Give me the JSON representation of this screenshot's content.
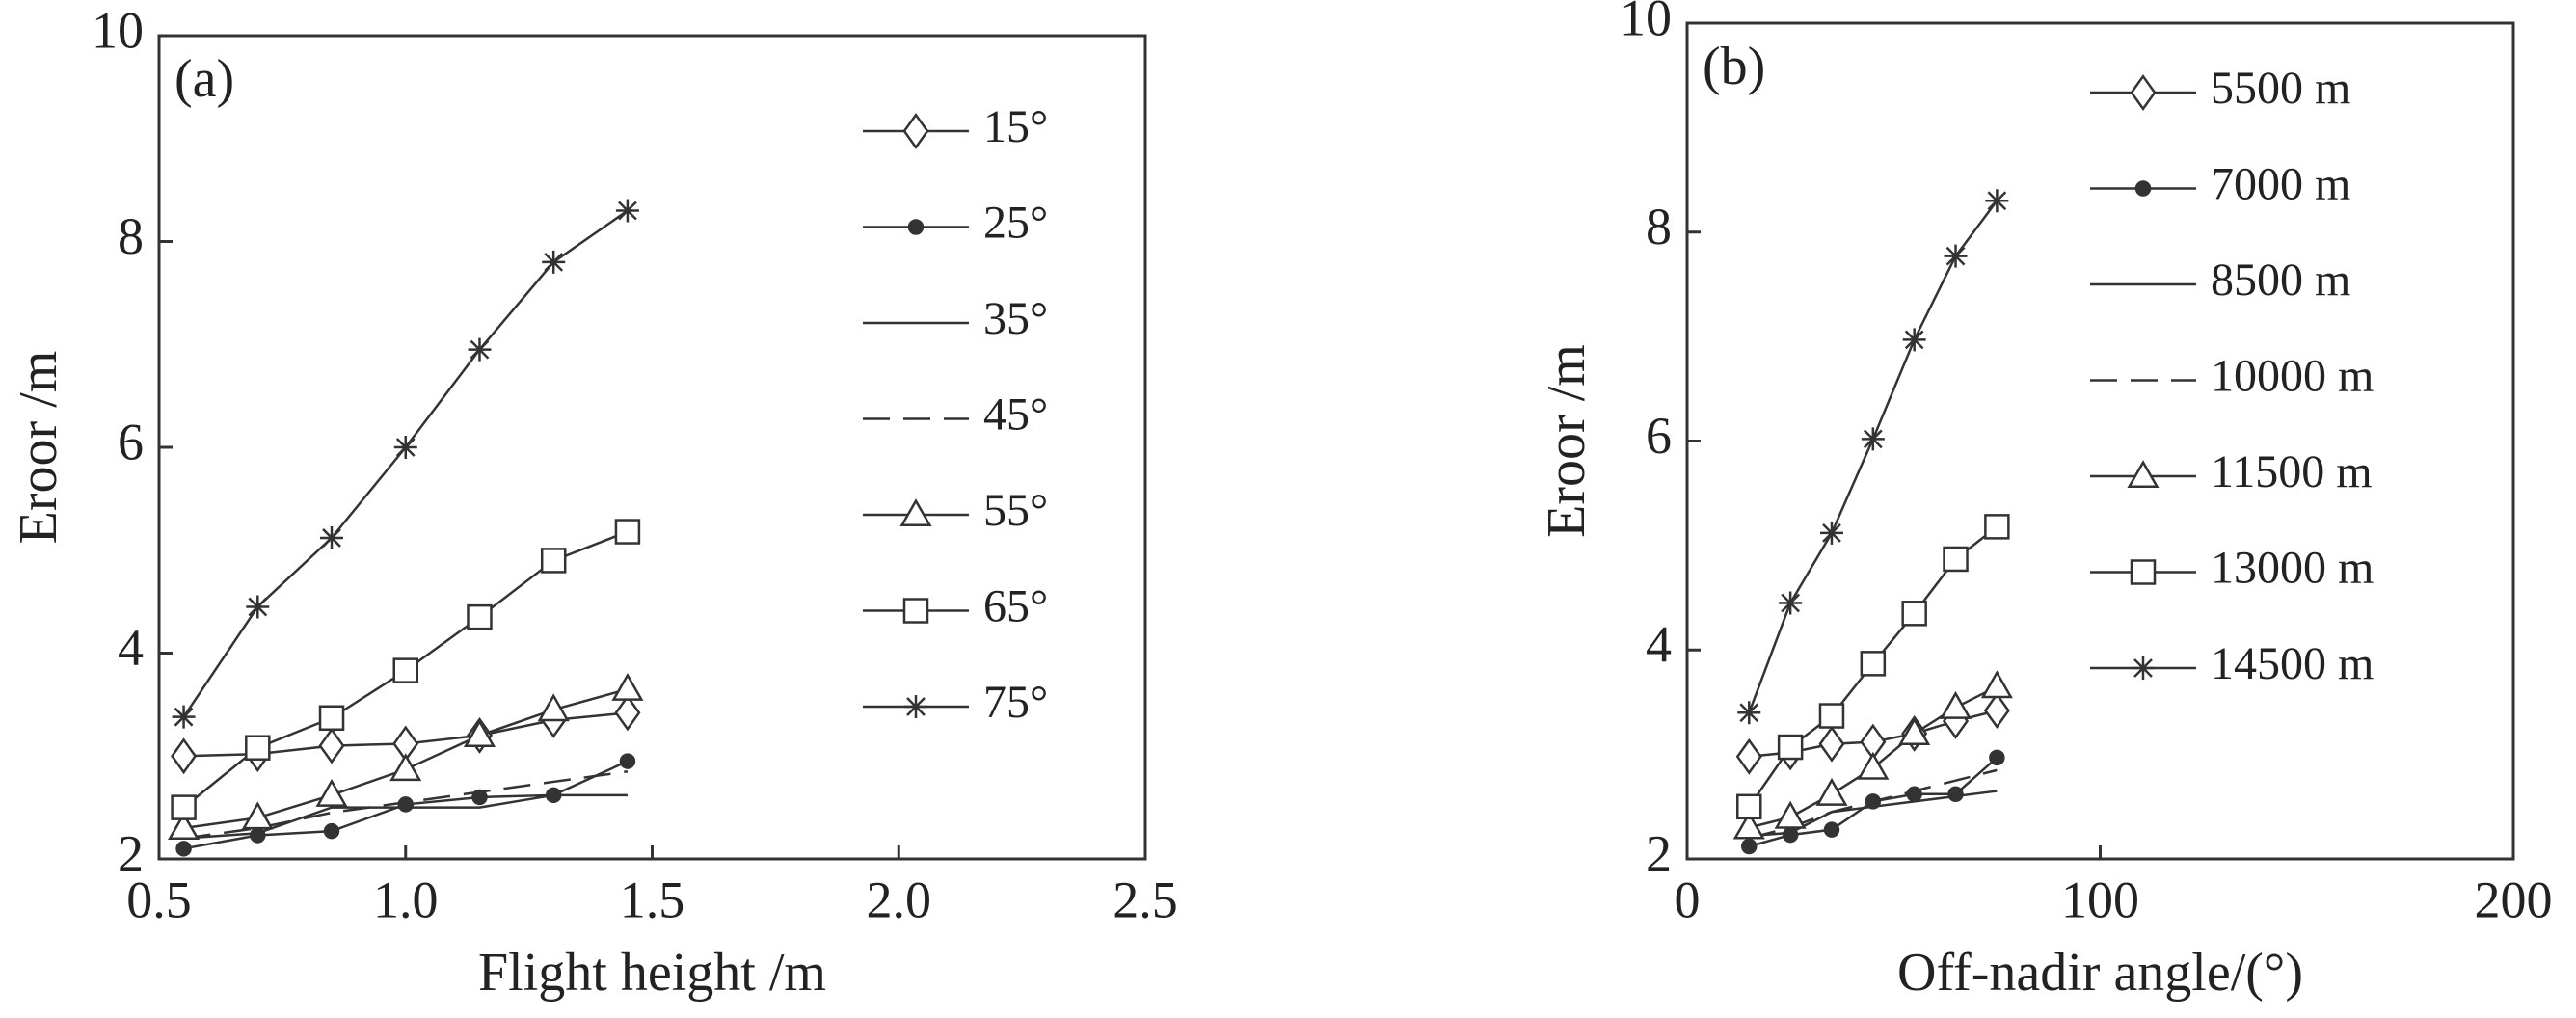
{
  "chart_data": [
    {
      "type": "line",
      "panel_label": "(a)",
      "xlabel": "Flight height /m",
      "ylabel": "Eroor /m",
      "x": [
        0.55,
        0.7,
        0.85,
        1.0,
        1.15,
        1.3,
        1.45
      ],
      "xlim": [
        0.5,
        2.5
      ],
      "ylim": [
        2,
        10
      ],
      "xticks": [
        0.5,
        {
          "value": 1.0,
          "label": "1.0"
        },
        1.5,
        {
          "value": 2.0,
          "label": "2.0"
        },
        2.5
      ],
      "yticks": [
        2,
        4,
        6,
        8,
        10
      ],
      "series": [
        {
          "name": "15°",
          "color": "#333333",
          "marker": "diamond",
          "linestyle": "solid",
          "values": [
            3.0,
            3.02,
            3.1,
            3.12,
            3.2,
            3.35,
            3.42
          ]
        },
        {
          "name": "25°",
          "color": "#333333",
          "marker": "dot",
          "linestyle": "solid",
          "values": [
            2.1,
            2.23,
            2.27,
            2.53,
            2.6,
            2.62,
            2.95
          ]
        },
        {
          "name": "35°",
          "color": "#333333",
          "marker": "none",
          "linestyle": "solid",
          "values": [
            2.2,
            2.25,
            2.5,
            2.5,
            2.5,
            2.62,
            2.62
          ]
        },
        {
          "name": "45°",
          "color": "#333333",
          "marker": "none",
          "linestyle": "dashed",
          "values": [
            2.2,
            2.3,
            2.45,
            2.55,
            2.65,
            2.75,
            2.85
          ]
        },
        {
          "name": "55°",
          "color": "#333333",
          "marker": "triangle",
          "linestyle": "solid",
          "values": [
            2.3,
            2.4,
            2.62,
            2.87,
            3.2,
            3.45,
            3.65
          ]
        },
        {
          "name": "65°",
          "color": "#333333",
          "marker": "square",
          "linestyle": "solid",
          "values": [
            2.5,
            3.08,
            3.37,
            3.83,
            4.35,
            4.9,
            5.18
          ]
        },
        {
          "name": "75°",
          "color": "#333333",
          "marker": "star",
          "linestyle": "solid",
          "values": [
            3.38,
            4.45,
            5.12,
            6.0,
            6.95,
            7.8,
            8.3
          ]
        }
      ]
    },
    {
      "type": "line",
      "panel_label": "(b)",
      "xlabel": "Off-nadir angle/(°)",
      "ylabel": "Eroor /m",
      "x": [
        15,
        25,
        35,
        45,
        55,
        65,
        75
      ],
      "xlim": [
        0,
        200
      ],
      "ylim": [
        2,
        10
      ],
      "xticks": [
        0,
        100,
        200
      ],
      "yticks": [
        2,
        4,
        6,
        8,
        10
      ],
      "series": [
        {
          "name": "5500 m",
          "color": "#333333",
          "marker": "diamond",
          "linestyle": "solid",
          "values": [
            2.98,
            3.02,
            3.1,
            3.12,
            3.2,
            3.32,
            3.42
          ]
        },
        {
          "name": "7000 m",
          "color": "#333333",
          "marker": "dot",
          "linestyle": "solid",
          "values": [
            2.12,
            2.23,
            2.28,
            2.55,
            2.62,
            2.62,
            2.97
          ]
        },
        {
          "name": "8500 m",
          "color": "#333333",
          "marker": "none",
          "linestyle": "solid",
          "values": [
            2.22,
            2.25,
            2.45,
            2.5,
            2.55,
            2.6,
            2.65
          ]
        },
        {
          "name": "10000 m",
          "color": "#333333",
          "marker": "none",
          "linestyle": "dashed",
          "values": [
            2.2,
            2.3,
            2.45,
            2.55,
            2.65,
            2.75,
            2.85
          ]
        },
        {
          "name": "11500 m",
          "color": "#333333",
          "marker": "triangle",
          "linestyle": "solid",
          "values": [
            2.3,
            2.4,
            2.62,
            2.87,
            3.2,
            3.45,
            3.65
          ]
        },
        {
          "name": "13000 m",
          "color": "#333333",
          "marker": "square",
          "linestyle": "solid",
          "values": [
            2.5,
            3.07,
            3.37,
            3.87,
            4.35,
            4.87,
            5.18
          ]
        },
        {
          "name": "14500 m",
          "color": "#333333",
          "marker": "star",
          "linestyle": "solid",
          "values": [
            3.4,
            4.45,
            5.12,
            6.02,
            6.97,
            7.77,
            8.3
          ]
        }
      ]
    }
  ]
}
